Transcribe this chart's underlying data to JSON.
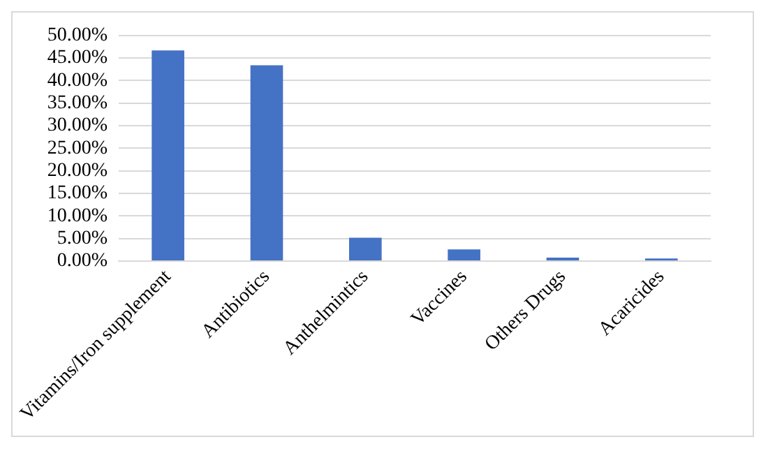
{
  "chart_data": {
    "type": "bar",
    "categories": [
      "Vitamins/Iron supplement",
      "Antibiotics",
      "Anthelmintics",
      "Vaccines",
      "Others Drugs",
      "Acaricides"
    ],
    "values": [
      46.7,
      43.4,
      5.2,
      2.6,
      0.8,
      0.6
    ],
    "color": "#4472c4",
    "ylim": [
      0,
      50
    ],
    "yticks": [
      {
        "value": 0,
        "label": "0.00%"
      },
      {
        "value": 5,
        "label": "5.00%"
      },
      {
        "value": 10,
        "label": "10.00%"
      },
      {
        "value": 15,
        "label": "15.00%"
      },
      {
        "value": 20,
        "label": "20.00%"
      },
      {
        "value": 25,
        "label": "25.00%"
      },
      {
        "value": 30,
        "label": "30.00%"
      },
      {
        "value": 35,
        "label": "35.00%"
      },
      {
        "value": 40,
        "label": "40.00%"
      },
      {
        "value": 45,
        "label": "45.00%"
      },
      {
        "value": 50,
        "label": "50.00%"
      }
    ],
    "grid": "y"
  }
}
